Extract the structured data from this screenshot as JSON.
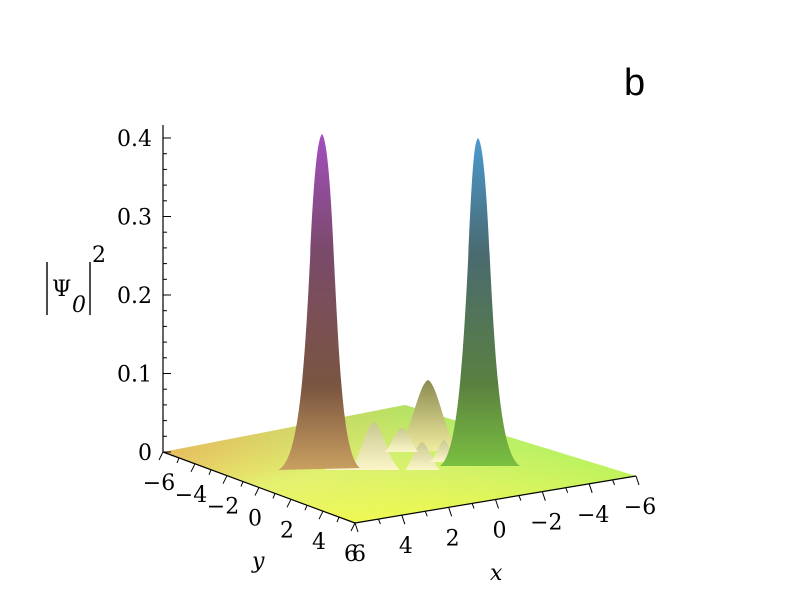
{
  "panel_label": "b",
  "chart_data": {
    "type": "surface",
    "zlabel": {
      "symbol": "Ψ",
      "subscript": "0",
      "exponent": "2"
    },
    "xlabel": "x",
    "ylabel": "y",
    "zlim": [
      0,
      0.4
    ],
    "z_ticks": [
      "0",
      "0.1",
      "0.2",
      "0.3",
      "0.4"
    ],
    "x_ticks": [
      "6",
      "4",
      "2",
      "0",
      "−2",
      "−4",
      "−6"
    ],
    "y_ticks": [
      "−6",
      "−4",
      "−2",
      "0",
      "2",
      "4",
      "6"
    ],
    "xlim": [
      -6,
      6
    ],
    "ylim": [
      -6,
      6
    ],
    "peaks": [
      {
        "x": 5.0,
        "y": -2.5,
        "height": 0.4
      },
      {
        "x": -3.5,
        "y": 0.5,
        "height": 0.4
      },
      {
        "x": 0.0,
        "y": -1.5,
        "height": 0.09
      },
      {
        "x": 1.5,
        "y": 1.0,
        "height": 0.06
      },
      {
        "x": -1.0,
        "y": 0.5,
        "height": 0.04
      }
    ]
  }
}
